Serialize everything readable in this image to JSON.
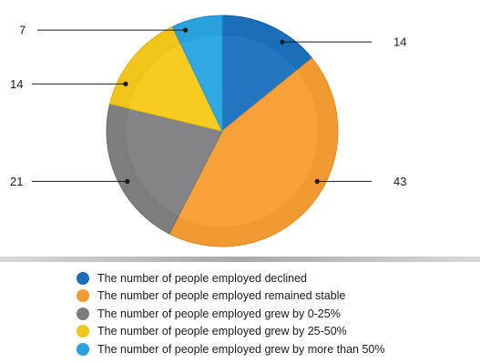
{
  "chart_data": {
    "type": "pie",
    "title": "",
    "start_angle_deg": 0,
    "direction": "clockwise",
    "slices": [
      {
        "label": "The number of people employed declined",
        "value": 14,
        "color": "#1b6fb8"
      },
      {
        "label": "The number of people employed remained stable",
        "value": 43,
        "color": "#f29a32"
      },
      {
        "label": "The number of people employed grew by 0-25%",
        "value": 21,
        "color": "#7d7d7f"
      },
      {
        "label": "The number of people employed grew by 25-50%",
        "value": 14,
        "color": "#f0c419"
      },
      {
        "label": "The number of people employed grew by more than 50%",
        "value": 7,
        "color": "#2aa0dc"
      }
    ],
    "data_labels": [
      "14",
      "43",
      "21",
      "14",
      "7"
    ],
    "legend_position": "bottom"
  }
}
